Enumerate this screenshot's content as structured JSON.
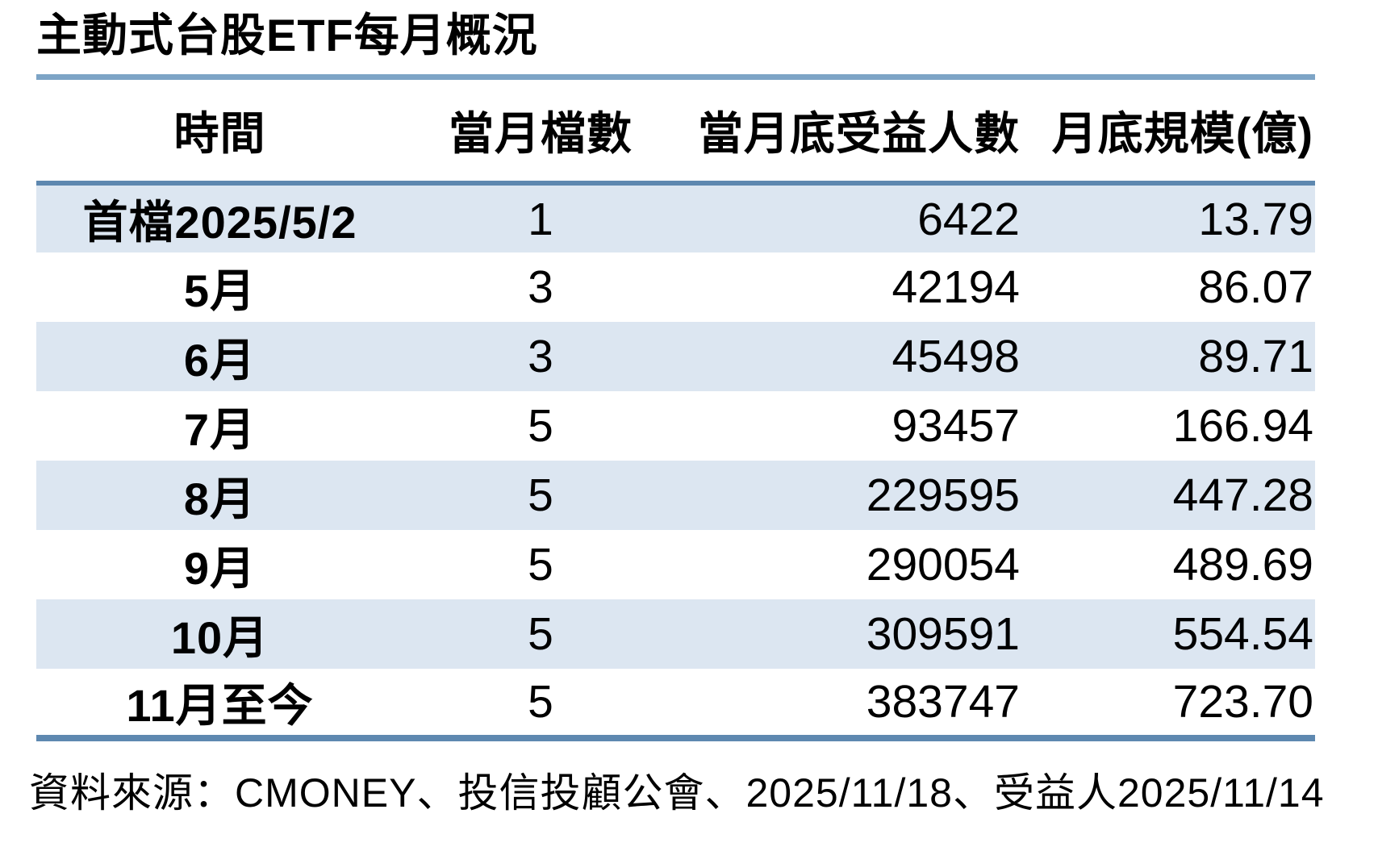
{
  "chart_data": {
    "type": "table",
    "title": "主動式台股ETF每月概況",
    "columns": [
      "時間",
      "當月檔數",
      "當月底受益人數",
      "月底規模(億)"
    ],
    "rows": [
      [
        "首檔2025/5/2",
        "1",
        "6422",
        "13.79"
      ],
      [
        "5月",
        "3",
        "42194",
        "86.07"
      ],
      [
        "6月",
        "3",
        "45498",
        "89.71"
      ],
      [
        "7月",
        "5",
        "93457",
        "166.94"
      ],
      [
        "8月",
        "5",
        "229595",
        "447.28"
      ],
      [
        "9月",
        "5",
        "290054",
        "489.69"
      ],
      [
        "10月",
        "5",
        "309591",
        "554.54"
      ],
      [
        "11月至今",
        "5",
        "383747",
        "723.70"
      ]
    ],
    "source_note": "資料來源：CMONEY、投信投顧公會、2025/11/18、受益人2025/11/14",
    "layout": {
      "stripe_rows": "odd",
      "numeric_alignment": "right",
      "label_alignment": "center"
    }
  },
  "colors": {
    "stripe": "#dce6f1",
    "rule": "#7da4c6",
    "table_border": "#5e88b0",
    "text": "#000000",
    "background": "#ffffff"
  }
}
